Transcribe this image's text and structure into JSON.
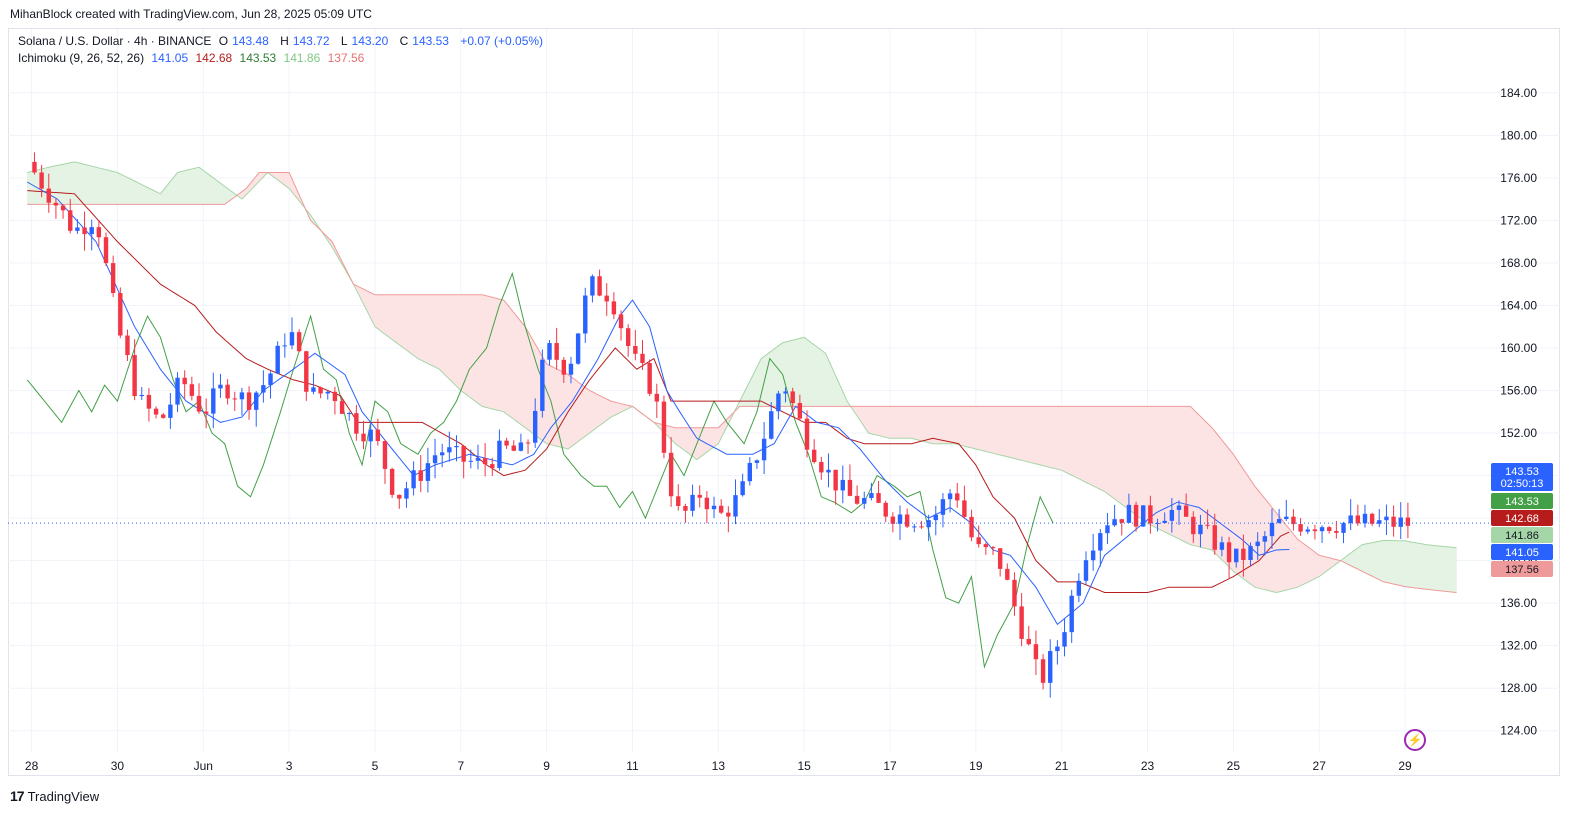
{
  "header": {
    "created_text": "MihanBlock created with TradingView.com, Jun 28, 2025 05:09 UTC"
  },
  "legend": {
    "symbol": "Solana / U.S. Dollar · 4h · BINANCE",
    "o_label": "O",
    "o_value": "143.48",
    "h_label": "H",
    "h_value": "143.72",
    "l_label": "L",
    "l_value": "143.20",
    "c_label": "C",
    "c_value": "143.53",
    "change": "+0.07 (+0.05%)",
    "indicator_name": "Ichimoku (9, 26, 52, 26)",
    "tenkan": "141.05",
    "kijun": "142.68",
    "chikou": "143.53",
    "span_a": "141.86",
    "span_b": "137.56"
  },
  "colors": {
    "up": "#2962ff",
    "down": "#f23645",
    "tenkan": "#2962ff",
    "kijun": "#b71c1c",
    "chikou": "#43a047",
    "span_a": "#a5d6a7",
    "span_b": "#ef9a9a",
    "cloud_bull": "#e4f3e4",
    "cloud_bear": "#fde4e4",
    "grid": "#f0f3fa"
  },
  "price_badges": {
    "last_price": "143.53",
    "countdown": "02:50:13",
    "chikou": "143.53",
    "kijun": "142.68",
    "span_a": "141.86",
    "tenkan": "141.05",
    "span_b": "137.56"
  },
  "footer": {
    "brand": "TradingView"
  },
  "chart_data": {
    "type": "candlestick",
    "title": "Solana / U.S. Dollar · 4h · BINANCE",
    "y_ticks": [
      "184.00",
      "180.00",
      "176.00",
      "172.00",
      "168.00",
      "164.00",
      "160.00",
      "156.00",
      "152.00",
      "148.00",
      "144.00",
      "140.00",
      "136.00",
      "132.00",
      "128.00",
      "124.00"
    ],
    "x_ticks": [
      "28",
      "30",
      "Jun",
      "3",
      "5",
      "7",
      "9",
      "11",
      "13",
      "15",
      "17",
      "19",
      "21",
      "23",
      "25",
      "27",
      "29"
    ],
    "ylim": [
      122.5,
      185.5
    ],
    "x_range_days": [
      27.9,
      61.2
    ],
    "close_anchors": {
      "x_day": [
        27.9,
        28.5,
        29.0,
        29.5,
        30.0,
        30.5,
        31.0,
        31.5,
        32.0,
        32.5,
        33.0,
        33.5,
        34.0,
        34.5,
        35.0,
        35.5,
        36.0,
        36.5,
        37.0,
        37.5,
        38.0,
        38.5,
        39.0,
        39.5,
        40.0,
        40.5,
        41.0,
        41.5,
        42.0,
        42.5,
        43.0,
        43.3,
        43.6,
        44.0,
        44.5,
        45.0,
        45.5,
        46.0,
        46.5,
        47.0,
        47.5,
        48.0,
        48.5,
        49.0,
        49.5,
        50.0,
        50.5,
        51.0,
        51.5,
        52.0,
        52.5,
        53.0,
        53.5,
        54.0,
        54.5,
        55.0,
        55.5,
        56.0,
        56.5,
        57.0,
        57.5,
        58.0,
        58.5,
        59.0,
        59.5,
        60.0,
        60.2
      ],
      "close": [
        177.5,
        174.0,
        171.0,
        172.5,
        162.0,
        155.0,
        153.0,
        157.0,
        154.0,
        156.5,
        155.0,
        157.0,
        162.0,
        155.5,
        156.0,
        153.0,
        151.5,
        146.0,
        148.0,
        150.5,
        149.5,
        149.0,
        150.5,
        150.0,
        160.0,
        158.0,
        166.0,
        165.0,
        159.0,
        156.0,
        144.5,
        144.5,
        146.5,
        144.0,
        146.0,
        151.0,
        157.0,
        152.0,
        148.5,
        146.0,
        145.5,
        144.5,
        144.0,
        144.0,
        147.0,
        141.0,
        140.5,
        134.5,
        128.5,
        133.0,
        140.5,
        143.8,
        144.5,
        144.0,
        144.8,
        143.5,
        142.0,
        140.0,
        141.0,
        143.5,
        143.5,
        143.5,
        143.5,
        143.5,
        143.5,
        143.5,
        143.5
      ]
    },
    "ichimoku": {
      "tenkan_anchors": {
        "x_day": [
          27.9,
          28.6,
          29.5,
          30.4,
          31.0,
          31.6,
          32.4,
          32.9,
          33.4,
          34.1,
          34.6,
          35.3,
          35.7,
          36.4,
          36.9,
          37.4,
          38.2,
          38.7,
          39.2,
          39.7,
          40.1,
          40.6,
          41.2,
          41.7,
          42.0,
          42.4,
          42.8,
          43.1,
          43.5,
          44.2,
          44.8,
          45.3,
          45.8,
          46.3,
          46.8,
          47.3,
          47.9,
          48.4,
          48.9,
          49.4,
          49.9,
          50.4,
          50.8,
          51.4,
          51.9,
          52.5,
          53.0,
          53.6,
          54.2,
          54.7,
          55.2,
          55.7,
          56.2,
          56.6,
          57.0,
          57.3
        ],
        "value": [
          175.6,
          174.0,
          170.0,
          162.0,
          158.0,
          155.0,
          153.0,
          153.5,
          156.0,
          158.0,
          159.5,
          157.5,
          154.0,
          150.5,
          148.0,
          149.0,
          150.0,
          149.5,
          149.0,
          150.0,
          152.5,
          155.0,
          159.0,
          163.0,
          164.5,
          162.0,
          156.0,
          154.0,
          151.5,
          150.0,
          150.0,
          151.0,
          154.5,
          153.0,
          152.5,
          150.5,
          147.5,
          145.5,
          144.0,
          145.0,
          143.5,
          141.0,
          140.5,
          137.5,
          134.0,
          136.0,
          140.5,
          142.5,
          144.5,
          145.5,
          145.0,
          143.5,
          142.0,
          140.5,
          141.0,
          141.05
        ]
      },
      "kijun_anchors": {
        "x_day": [
          27.9,
          29.0,
          30.0,
          30.5,
          31.0,
          31.8,
          32.3,
          33.0,
          33.5,
          34.1,
          34.6,
          35.2,
          35.6,
          36.2,
          36.6,
          37.1,
          38.0,
          38.6,
          39.0,
          39.5,
          40.0,
          40.5,
          41.0,
          41.6,
          42.1,
          42.5,
          42.9,
          43.4,
          44.0,
          44.5,
          45.0,
          45.5,
          46.0,
          46.5,
          47.0,
          47.4,
          47.9,
          48.5,
          49.0,
          49.6,
          50.0,
          50.4,
          50.9,
          51.4,
          51.9,
          52.4,
          53.0,
          53.5,
          54.0,
          54.5,
          55.0,
          55.5,
          56.0,
          56.6,
          57.1,
          57.3
        ],
        "value": [
          174.8,
          174.5,
          170.0,
          168.0,
          166.0,
          164.0,
          161.5,
          159.0,
          158.0,
          157.0,
          156.5,
          155.5,
          153.0,
          153.0,
          153.0,
          153.0,
          151.0,
          149.0,
          148.0,
          148.5,
          150.5,
          154.0,
          157.0,
          160.0,
          158.0,
          159.0,
          155.0,
          155.0,
          155.0,
          155.0,
          155.0,
          154.0,
          153.0,
          153.0,
          151.5,
          151.0,
          151.0,
          151.0,
          151.5,
          151.0,
          149.0,
          146.0,
          144.0,
          140.0,
          138.0,
          138.0,
          137.0,
          137.0,
          137.0,
          137.5,
          137.5,
          137.5,
          138.5,
          140.0,
          142.3,
          142.68
        ]
      },
      "chikou_anchors": {
        "x_day": [
          27.9,
          28.3,
          28.7,
          29.1,
          29.4,
          29.7,
          30.0,
          30.4,
          30.7,
          31.0,
          31.3,
          31.6,
          31.9,
          32.2,
          32.5,
          32.8,
          33.1,
          33.4,
          33.8,
          34.1,
          34.5,
          34.8,
          35.1,
          35.4,
          35.7,
          36.0,
          36.3,
          36.6,
          37.0,
          37.3,
          37.6,
          37.9,
          38.2,
          38.6,
          38.9,
          39.2,
          39.5,
          39.8,
          40.1,
          40.4,
          40.8,
          41.1,
          41.4,
          41.7,
          42.0,
          42.3,
          42.6,
          42.9,
          43.2,
          43.6,
          43.9,
          44.2,
          44.6,
          44.9,
          45.2,
          45.5,
          45.8,
          46.1,
          46.4,
          46.7,
          47.1,
          47.4,
          47.7,
          48.1,
          48.4,
          48.7,
          49.0,
          49.3,
          49.6,
          49.9,
          50.2,
          50.5,
          50.9,
          51.2,
          51.5,
          51.8
        ],
        "value": [
          157.0,
          155.0,
          153.0,
          156.0,
          154.0,
          156.5,
          155.0,
          160.0,
          163.0,
          161.0,
          157.0,
          154.0,
          155.0,
          152.0,
          151.0,
          147.0,
          146.0,
          149.0,
          154.0,
          158.0,
          163.0,
          158.0,
          157.0,
          152.0,
          149.0,
          155.0,
          154.0,
          151.0,
          150.0,
          152.0,
          153.0,
          155.0,
          158.0,
          160.0,
          164.0,
          167.0,
          162.0,
          158.0,
          155.0,
          150.0,
          148.0,
          147.0,
          147.0,
          145.0,
          146.5,
          144.0,
          147.0,
          150.0,
          148.0,
          152.0,
          155.0,
          153.0,
          151.0,
          154.0,
          159.0,
          157.5,
          153.0,
          150.0,
          146.0,
          145.5,
          144.5,
          145.5,
          148.0,
          147.0,
          146.0,
          146.5,
          141.0,
          136.5,
          136.0,
          138.5,
          130.0,
          133.0,
          136.0,
          141.5,
          146.0,
          143.53
        ]
      },
      "span_a_anchors": {
        "x_day": [
          27.9,
          28.4,
          29.0,
          29.5,
          30.0,
          30.5,
          31.0,
          31.4,
          31.9,
          32.4,
          32.9,
          33.5,
          34.0,
          34.5,
          35.0,
          35.5,
          36.0,
          36.5,
          37.0,
          37.5,
          38.0,
          38.5,
          39.0,
          39.5,
          40.0,
          40.5,
          41.0,
          41.5,
          42.0,
          42.5,
          43.0,
          43.5,
          44.0,
          44.5,
          45.0,
          45.5,
          46.0,
          46.5,
          47.0,
          47.5,
          48.0,
          48.5,
          49.0,
          49.5,
          50.0,
          50.5,
          51.0,
          51.5,
          52.0,
          52.5,
          53.0,
          53.5,
          54.0,
          54.5,
          55.0,
          55.5,
          56.0,
          56.5,
          57.0,
          57.5,
          58.0,
          58.5,
          59.0,
          59.5,
          60.0,
          60.5,
          61.2
        ],
        "value": [
          176.5,
          177.0,
          177.5,
          177.0,
          176.5,
          175.5,
          174.5,
          176.5,
          177.0,
          175.5,
          174.0,
          176.5,
          175.0,
          172.5,
          169.5,
          166.0,
          162.0,
          160.5,
          159.0,
          158.0,
          156.0,
          154.5,
          154.0,
          152.5,
          151.0,
          150.5,
          152.0,
          153.5,
          154.5,
          153.0,
          151.0,
          149.5,
          151.0,
          155.0,
          159.0,
          160.5,
          161.0,
          159.5,
          155.0,
          152.0,
          151.5,
          151.5,
          151.0,
          151.0,
          150.5,
          150.0,
          149.5,
          149.0,
          148.5,
          147.5,
          146.5,
          145.0,
          143.5,
          142.5,
          141.5,
          141.0,
          139.0,
          137.5,
          137.0,
          137.5,
          138.5,
          140.0,
          141.5,
          141.9,
          141.86,
          141.5,
          141.2
        ]
      },
      "span_b_anchors": {
        "x_day": [
          27.9,
          29.0,
          30.0,
          31.0,
          32.0,
          32.5,
          33.0,
          33.3,
          33.6,
          34.0,
          34.5,
          35.0,
          35.5,
          36.0,
          36.5,
          37.0,
          37.5,
          38.0,
          38.5,
          39.0,
          39.5,
          40.0,
          40.5,
          41.0,
          41.5,
          42.0,
          42.5,
          43.0,
          43.5,
          44.0,
          44.5,
          45.0,
          45.5,
          46.0,
          46.5,
          47.0,
          47.5,
          48.0,
          48.5,
          49.0,
          49.5,
          50.0,
          50.5,
          51.0,
          51.5,
          52.0,
          52.5,
          53.0,
          53.5,
          54.0,
          54.5,
          55.0,
          55.5,
          56.0,
          56.5,
          57.0,
          57.5,
          58.0,
          58.5,
          59.0,
          59.5,
          60.0,
          60.5,
          61.2
        ],
        "value": [
          173.5,
          173.5,
          173.5,
          173.5,
          173.5,
          173.5,
          175.0,
          176.5,
          176.5,
          176.5,
          172.0,
          170.0,
          166.0,
          165.0,
          165.0,
          165.0,
          165.0,
          165.0,
          165.0,
          164.5,
          162.0,
          158.5,
          157.5,
          156.0,
          155.0,
          154.5,
          153.0,
          152.5,
          152.5,
          152.5,
          154.5,
          154.5,
          154.5,
          154.5,
          154.5,
          154.5,
          154.5,
          154.5,
          154.5,
          154.5,
          154.5,
          154.5,
          154.5,
          154.5,
          154.5,
          154.5,
          154.5,
          154.5,
          154.5,
          154.5,
          154.5,
          154.5,
          152.5,
          150.0,
          147.0,
          144.5,
          142.0,
          140.5,
          140.0,
          139.0,
          138.0,
          137.56,
          137.3,
          137.0
        ]
      }
    }
  }
}
